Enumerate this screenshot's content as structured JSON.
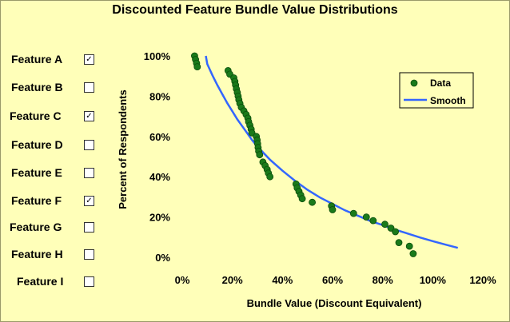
{
  "features": [
    {
      "label": "Feature A",
      "checked": true
    },
    {
      "label": "Feature B",
      "checked": false
    },
    {
      "label": "Feature C",
      "checked": true
    },
    {
      "label": "Feature D",
      "checked": false
    },
    {
      "label": "Feature E",
      "checked": false
    },
    {
      "label": "Feature F",
      "checked": true
    },
    {
      "label": "Feature G",
      "checked": false
    },
    {
      "label": "Feature H",
      "checked": false
    },
    {
      "label": "Feature I",
      "checked": false
    }
  ],
  "check_glyph": "✓",
  "chart_data": {
    "type": "scatter",
    "title": "Discounted Feature Bundle Value Distributions",
    "xlabel": "Bundle Value (Discount Equivalent)",
    "ylabel": "Percent of Respondents",
    "xlim": [
      0,
      120
    ],
    "ylim": [
      0,
      100
    ],
    "xticks": [
      "0%",
      "20%",
      "40%",
      "60%",
      "80%",
      "100%",
      "120%"
    ],
    "yticks": [
      "0%",
      "20%",
      "40%",
      "60%",
      "80%",
      "100%"
    ],
    "grid": false,
    "legend": {
      "position": "top-right",
      "entries": [
        "Data",
        "Smooth"
      ]
    },
    "colors": {
      "data": "#1a7a1a",
      "smooth": "#3366ff",
      "background": "#ffffb9"
    },
    "series": [
      {
        "name": "Data",
        "type": "scatter",
        "points": [
          [
            4.9,
            100
          ],
          [
            5.3,
            98.2
          ],
          [
            5.7,
            96.4
          ],
          [
            6.0,
            94.6
          ],
          [
            18.3,
            92.7
          ],
          [
            19.0,
            90.9
          ],
          [
            20.6,
            89.1
          ],
          [
            21.0,
            87.3
          ],
          [
            21.3,
            85.5
          ],
          [
            21.6,
            83.6
          ],
          [
            22.0,
            81.8
          ],
          [
            22.3,
            80.0
          ],
          [
            22.6,
            78.2
          ],
          [
            23.0,
            76.4
          ],
          [
            23.6,
            74.5
          ],
          [
            24.6,
            72.7
          ],
          [
            25.5,
            70.9
          ],
          [
            26.2,
            69.1
          ],
          [
            26.5,
            67.3
          ],
          [
            27.0,
            65.5
          ],
          [
            27.5,
            63.6
          ],
          [
            27.8,
            61.8
          ],
          [
            29.6,
            60.0
          ],
          [
            29.9,
            58.2
          ],
          [
            30.1,
            56.4
          ],
          [
            30.3,
            54.5
          ],
          [
            30.5,
            52.7
          ],
          [
            30.9,
            50.9
          ],
          [
            32.2,
            47.3
          ],
          [
            33.1,
            45.5
          ],
          [
            33.9,
            43.6
          ],
          [
            34.4,
            41.8
          ],
          [
            35.0,
            40.0
          ],
          [
            45.4,
            36.4
          ],
          [
            45.9,
            34.5
          ],
          [
            46.6,
            32.7
          ],
          [
            47.3,
            30.9
          ],
          [
            47.9,
            29.1
          ],
          [
            51.9,
            27.3
          ],
          [
            59.6,
            25.5
          ],
          [
            60.0,
            23.6
          ],
          [
            68.4,
            21.8
          ],
          [
            73.5,
            20.0
          ],
          [
            76.2,
            18.2
          ],
          [
            80.9,
            16.4
          ],
          [
            83.3,
            14.5
          ],
          [
            85.1,
            12.7
          ],
          [
            86.5,
            7.3
          ],
          [
            90.7,
            5.5
          ],
          [
            92.2,
            1.8
          ]
        ]
      },
      {
        "name": "Smooth",
        "type": "line",
        "points": [
          [
            9.4,
            100
          ],
          [
            10,
            96
          ],
          [
            12,
            90.5
          ],
          [
            14,
            85.5
          ],
          [
            16,
            81
          ],
          [
            18,
            76.5
          ],
          [
            20,
            72.5
          ],
          [
            22,
            68.5
          ],
          [
            24,
            65
          ],
          [
            26,
            61.5
          ],
          [
            28,
            58
          ],
          [
            30,
            55
          ],
          [
            35,
            48.5
          ],
          [
            40,
            43
          ],
          [
            45,
            38
          ],
          [
            50,
            33.5
          ],
          [
            55,
            29.7
          ],
          [
            60,
            26.5
          ],
          [
            65,
            23.3
          ],
          [
            70,
            20.7
          ],
          [
            75,
            18.1
          ],
          [
            80,
            16
          ],
          [
            85,
            13.7
          ],
          [
            90,
            11.8
          ],
          [
            95,
            9.8
          ],
          [
            100,
            8
          ],
          [
            105,
            6.3
          ],
          [
            110,
            4.7
          ]
        ]
      }
    ]
  }
}
